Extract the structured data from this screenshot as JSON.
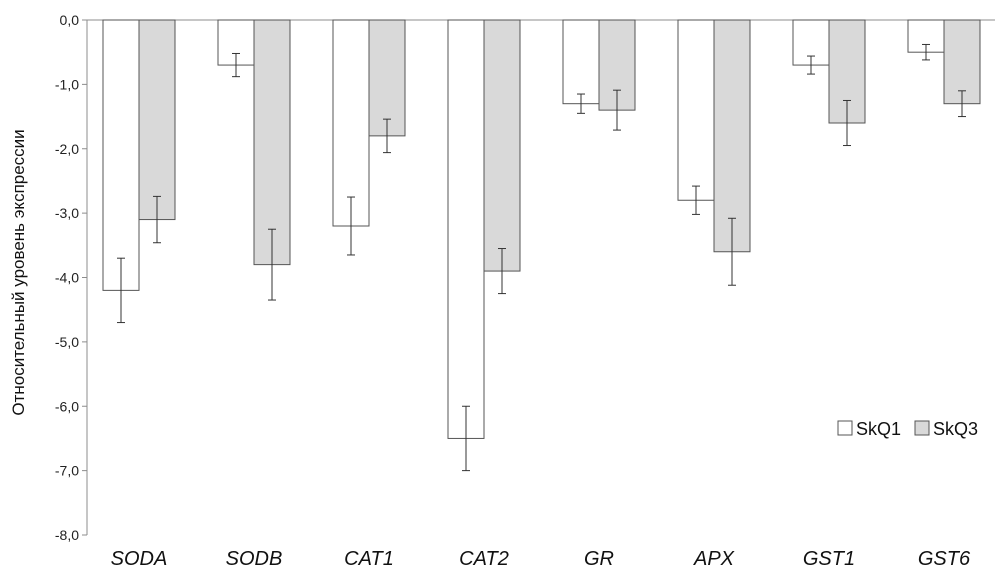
{
  "chart_data": {
    "type": "bar",
    "title": "",
    "xlabel": "",
    "ylabel": "Относительный уровень экспрессии",
    "ylim": [
      -8,
      0
    ],
    "yticks": [
      "0,0",
      "-1,0",
      "-2,0",
      "-3,0",
      "-4,0",
      "-5,0",
      "-6,0",
      "-7,0",
      "-8,0"
    ],
    "grid": false,
    "legend_position": "right",
    "categories": [
      "SODA",
      "SODB",
      "CAT1",
      "CAT2",
      "GR",
      "APX",
      "GST1",
      "GST6"
    ],
    "series": [
      {
        "name": "SkQ1",
        "color": "#ffffff",
        "values": [
          -4.2,
          -0.7,
          -3.2,
          -6.5,
          -1.3,
          -2.8,
          -0.7,
          -0.5
        ],
        "errors": [
          0.5,
          0.18,
          0.45,
          0.5,
          0.15,
          0.22,
          0.14,
          0.12
        ]
      },
      {
        "name": "SkQ3",
        "color": "#d9d9d9",
        "values": [
          -3.1,
          -3.8,
          -1.8,
          -3.9,
          -1.4,
          -3.6,
          -1.6,
          -1.3
        ],
        "errors": [
          0.36,
          0.55,
          0.26,
          0.35,
          0.31,
          0.52,
          0.35,
          0.2
        ]
      }
    ]
  }
}
